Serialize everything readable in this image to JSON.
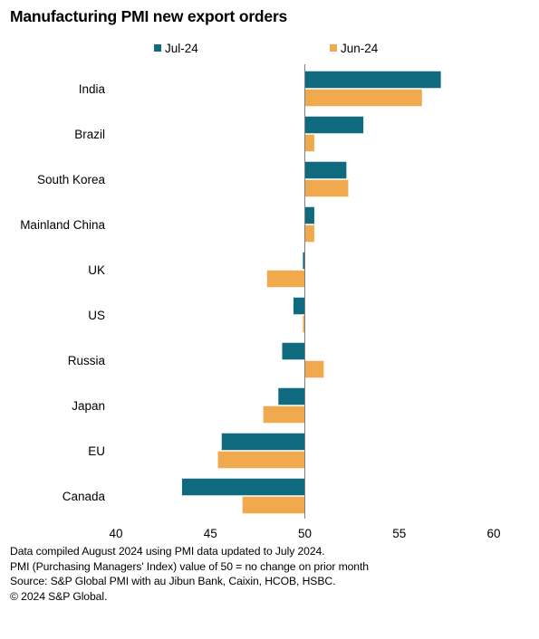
{
  "chart_data": {
    "type": "bar",
    "orientation": "horizontal",
    "title": "Manufacturing PMI new export orders",
    "categories": [
      "India",
      "Brazil",
      "South Korea",
      "Mainland China",
      "UK",
      "US",
      "Russia",
      "Japan",
      "EU",
      "Canada"
    ],
    "series": [
      {
        "name": "Jul-24",
        "color": "#0f6a80",
        "values": [
          57.2,
          53.1,
          52.2,
          50.5,
          49.9,
          49.4,
          48.8,
          48.6,
          45.6,
          43.5
        ]
      },
      {
        "name": "Jun-24",
        "color": "#f1a94e",
        "values": [
          56.2,
          50.5,
          52.3,
          50.5,
          48.0,
          49.9,
          51.0,
          47.8,
          45.4,
          46.7
        ]
      }
    ],
    "baseline": 50,
    "xlim": [
      40,
      60
    ],
    "xticks": [
      40,
      45,
      50,
      55,
      60
    ],
    "xlabel": "",
    "ylabel": "",
    "legend_position": "top",
    "grid": false
  },
  "notes": [
    "Data compiled August 2024 using PMI data updated to July 2024.",
    "PMI (Purchasing Managers' Index) value of 50 = no change on prior month",
    "Source: S&P Global PMI with au Jibun Bank, Caixin, HCOB, HSBC.",
    "© 2024 S&P Global."
  ]
}
